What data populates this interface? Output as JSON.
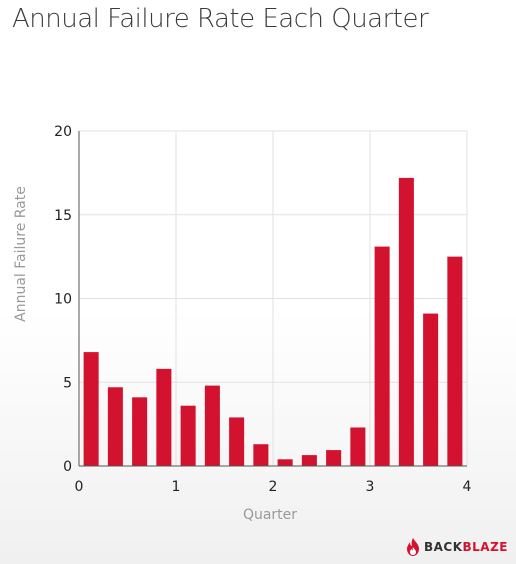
{
  "chart_data": {
    "type": "bar",
    "title": "Annual Failure Rate Each Quarter",
    "xlabel": "Quarter",
    "ylabel": "Annual Failure Rate",
    "xlim": [
      0,
      4
    ],
    "ylim": [
      0,
      20
    ],
    "xticks": [
      0,
      1,
      2,
      3,
      4
    ],
    "yticks": [
      0,
      5,
      10,
      15,
      20
    ],
    "grid": true,
    "bar_color": "#d3122f",
    "x": [
      0.125,
      0.375,
      0.625,
      0.875,
      1.125,
      1.375,
      1.625,
      1.875,
      2.125,
      2.375,
      2.625,
      2.875,
      3.125,
      3.375,
      3.625,
      3.875
    ],
    "values": [
      6.8,
      4.7,
      4.1,
      5.8,
      3.6,
      4.8,
      2.9,
      1.3,
      0.4,
      0.65,
      0.95,
      2.3,
      13.1,
      17.2,
      9.1,
      12.5
    ]
  },
  "brand": {
    "logo_part1": "BACK",
    "logo_part2": "BLAZE",
    "icon": "flame-icon"
  }
}
